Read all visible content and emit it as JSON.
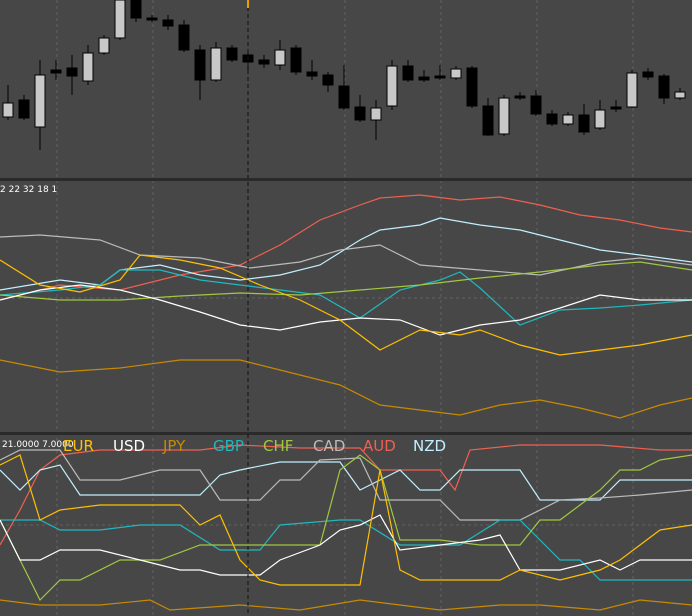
{
  "panels": [
    {
      "label": "2 22 32 18 1"
    },
    {
      "label": "21.0000 7.0000"
    }
  ],
  "legend": [
    {
      "name": "EUR",
      "color": "#ffc000"
    },
    {
      "name": "USD",
      "color": "#ffffff"
    },
    {
      "name": "JPY",
      "color": "#c88a00"
    },
    {
      "name": "GBP",
      "color": "#20b8c0"
    },
    {
      "name": "CHF",
      "color": "#a0c840"
    },
    {
      "name": "CAD",
      "color": "#bbbbbb"
    },
    {
      "name": "AUD",
      "color": "#f06050"
    },
    {
      "name": "NZD",
      "color": "#c0f0ff"
    }
  ]
}
